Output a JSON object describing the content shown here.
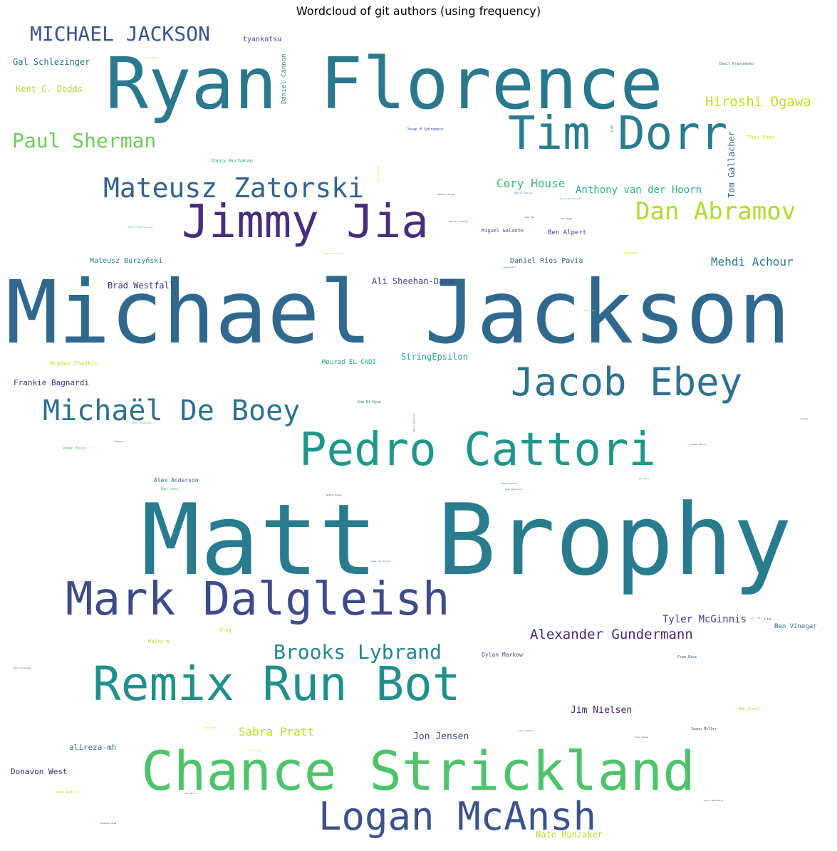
{
  "title": "Wordcloud of git authors (using frequency)",
  "words": [
    {
      "text": "Michael Jackson",
      "color": "#31688e"
    },
    {
      "text": "Matt Brophy",
      "color": "#287c8e"
    },
    {
      "text": "Ryan Florence",
      "color": "#2a788e"
    },
    {
      "text": "Chance Strickland",
      "color": "#4ec36b"
    },
    {
      "text": "Remix Run Bot",
      "color": "#21908d"
    },
    {
      "text": "Mark Dalgleish",
      "color": "#3e4a89"
    },
    {
      "text": "Pedro Cattori",
      "color": "#1f968b"
    },
    {
      "text": "Logan McAnsh",
      "color": "#3b528b"
    },
    {
      "text": "Jimmy Jia",
      "color": "#472d7b"
    },
    {
      "text": "Tim Dorr",
      "color": "#287d8e"
    },
    {
      "text": "Jacob Ebey",
      "color": "#2c728e"
    },
    {
      "text": "Michaël De Boey",
      "color": "#2d708e"
    },
    {
      "text": "Mateusz Zatorski",
      "color": "#33638d"
    },
    {
      "text": "Dan Abramov",
      "color": "#addc30"
    },
    {
      "text": "MICHAEL JACKSON",
      "color": "#3a548c"
    },
    {
      "text": "Paul Sherman",
      "color": "#6ccd5a"
    },
    {
      "text": "Brooks Lybrand",
      "color": "#25858e"
    },
    {
      "text": "Hiroshi Ogawa",
      "color": "#c2df23"
    },
    {
      "text": "Alexander Gundermann",
      "color": "#482878"
    },
    {
      "text": "Mehdi Achour",
      "color": "#2a778e"
    },
    {
      "text": "Cory House",
      "color": "#38b977"
    },
    {
      "text": "Anthony van der Hoorn",
      "color": "#2ab07f"
    },
    {
      "text": "Tyler McGinnis",
      "color": "#443983"
    },
    {
      "text": "Sabra Pratt",
      "color": "#b5de2b"
    },
    {
      "text": "Jim Nielsen",
      "color": "#482173"
    },
    {
      "text": "Jon Jensen",
      "color": "#3f4788"
    },
    {
      "text": "Ali Sheehan-Dare",
      "color": "#414487"
    },
    {
      "text": "Brad Westfall",
      "color": "#46337e"
    },
    {
      "text": "Tom Gallacher",
      "color": "#2e6f8e"
    },
    {
      "text": "Daniel Rios Pavia",
      "color": "#33638d"
    },
    {
      "text": "Mateusz Burzyński",
      "color": "#27808e"
    },
    {
      "text": "Gal Schlezinger",
      "color": "#2c718e"
    },
    {
      "text": "Kent C. Dodds",
      "color": "#b0dd2f"
    },
    {
      "text": "StringEpsilon",
      "color": "#22a785"
    },
    {
      "text": "Frankie Bagnardi",
      "color": "#46307e"
    },
    {
      "text": "Mourad EL CADI",
      "color": "#20a386"
    },
    {
      "text": "alireza-mh",
      "color": "#2d708e"
    },
    {
      "text": "Donavon West",
      "color": "#482677"
    },
    {
      "text": "Ben Vinegar",
      "color": "#2e6e8e"
    },
    {
      "text": "tyankatsu",
      "color": "#3e4989"
    },
    {
      "text": "Daniel Cannon",
      "color": "#287d8e"
    },
    {
      "text": "Nate Hunzaker",
      "color": "#b5de2b"
    },
    {
      "text": "Bogdan Chadkin",
      "color": "#c2df23"
    },
    {
      "text": "Alex Anderson",
      "color": "#35608d"
    },
    {
      "text": "Dylan Markow",
      "color": "#3b528b"
    },
    {
      "text": "Miguel Galante",
      "color": "#3e4c8a"
    },
    {
      "text": "Ben Alpert",
      "color": "#424086"
    },
    {
      "text": "Jonny Buchanan",
      "color": "#2db27d"
    },
    {
      "text": "Thai Phan",
      "color": "#d8e219"
    },
    {
      "text": "Josep M Sobrepere",
      "color": "#3d4d8a"
    },
    {
      "text": "Danil Kravchenko",
      "color": "#2a788e"
    },
    {
      "text": "Son Ki-Kyun",
      "color": "#2a778e"
    },
    {
      "text": "Roman Boiko",
      "color": "#5ec962"
    },
    {
      "text": "Dan Levy",
      "color": "#3dbc74"
    },
    {
      "text": "Malte W",
      "color": "#aadc32"
    },
    {
      "text": "Oleg",
      "color": "#c5e021"
    },
    {
      "text": "Bob Ziroll",
      "color": "#9dd93b"
    },
    {
      "text": "Jason Miller",
      "color": "#424186"
    },
    {
      "text": "Fran Dios",
      "color": "#3b528b"
    },
    {
      "text": "C. T. Lin",
      "color": "#39568c"
    },
    {
      "text": "John Reilly",
      "color": "#b8de29"
    },
    {
      "text": "Lodash",
      "color": "#e5e419"
    },
    {
      "text": "Ben Johnson",
      "color": "#5ec962"
    },
    {
      "text": "Gregor Weilemann",
      "color": "#a0da39"
    },
    {
      "text": "Karolis Narkevicius",
      "color": "#3dbc74"
    },
    {
      "text": "Johannes Luepe",
      "color": "#3a548c"
    },
    {
      "text": "Henrik Treling",
      "color": "#2c728e"
    },
    {
      "text": "Aaron Shafovaloff",
      "color": "#1f9e89"
    },
    {
      "text": "Benoit Tremblay",
      "color": "#25858e"
    },
    {
      "text": "John Nes",
      "color": "#46327e"
    },
    {
      "text": "Joe Haags",
      "color": "#482071"
    },
    {
      "text": "Jacob Madhen",
      "color": "#d2e21b"
    },
    {
      "text": "Lowb",
      "color": "#27808e"
    },
    {
      "text": "Dmytro Bozhyk",
      "color": "#d8e219"
    },
    {
      "text": "unsoursgit",
      "color": "#306a8e"
    },
    {
      "text": "Bob Sagan",
      "color": "#c8e020"
    },
    {
      "text": "Milly Sakchook",
      "color": "#3a538b"
    },
    {
      "text": "Andres",
      "color": "#404688"
    },
    {
      "text": "Thomas Gaucin",
      "color": "#2a778e"
    },
    {
      "text": "Jeshuaa",
      "color": "#46337e"
    },
    {
      "text": "Nathan Brown",
      "color": "#3b528b"
    },
    {
      "text": "Shodai Suzuki",
      "color": "#33638d"
    },
    {
      "text": "Sean Robinson",
      "color": "#2a788e"
    },
    {
      "text": "Ned Park",
      "color": "#22a884"
    },
    {
      "text": "Sven van Roorne",
      "color": "#2e6d8e"
    },
    {
      "text": "Matt Soltowski",
      "color": "#2a778e"
    },
    {
      "text": "DominicM7",
      "color": "#d2e21b"
    },
    {
      "text": "Leo Singer",
      "color": "#c5e021"
    },
    {
      "text": "Ilja Dadecka",
      "color": "#2e6f8e"
    },
    {
      "text": "Drew Reese",
      "color": "#3b528b"
    },
    {
      "text": "Joe Brill",
      "color": "#404688"
    },
    {
      "text": "Colin McDonnell",
      "color": "#3e4989"
    },
    {
      "text": "Thibaud Colas",
      "color": "#433e85"
    }
  ]
}
